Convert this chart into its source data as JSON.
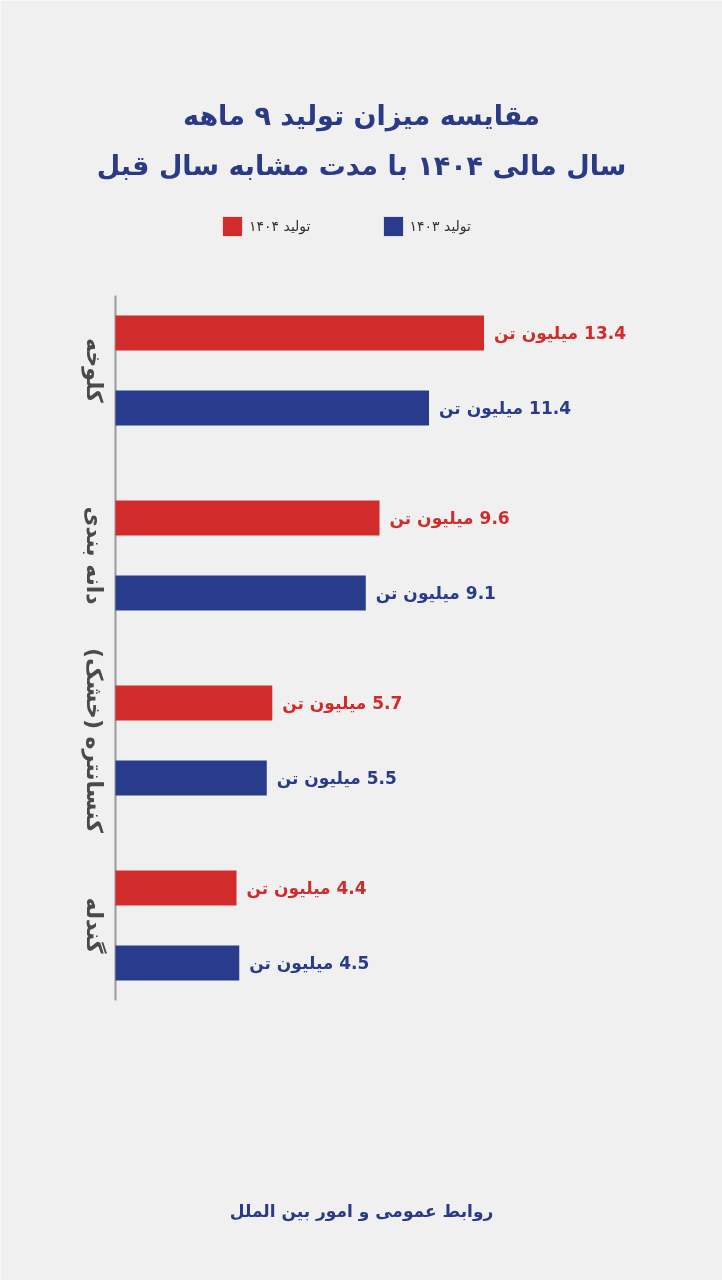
{
  "chart_data": {
    "type": "bar",
    "orientation": "horizontal",
    "title": "مقایسه میزان تولید ۹ ماهه",
    "subtitle": "سال مالی ۱۴۰۴ با مدت مشابه سال قبل",
    "categories": [
      "کلوخه",
      "دانه بندی",
      "کنسانتره (خشک)",
      "گندله"
    ],
    "series": [
      {
        "name": "تولید ۱۴۰۴",
        "color": "#d22b2b",
        "values": [
          13.4,
          9.6,
          5.7,
          4.4
        ],
        "value_labels": [
          "13.4 میلیون تن",
          "9.6 میلیون تن",
          "5.7 میلیون تن",
          "4.4 میلیون تن"
        ]
      },
      {
        "name": "تولید ۱۴۰۳",
        "color": "#283b8c",
        "values": [
          11.4,
          9.1,
          5.5,
          4.5
        ],
        "value_labels": [
          "11.4 میلیون تن",
          "9.1 میلیون تن",
          "5.5 میلیون تن",
          "4.5 میلیون تن"
        ]
      }
    ],
    "legend": "top",
    "tick_labels": "y",
    "annotations": [
      "روابط عمومی و امور بین الملل"
    ]
  }
}
